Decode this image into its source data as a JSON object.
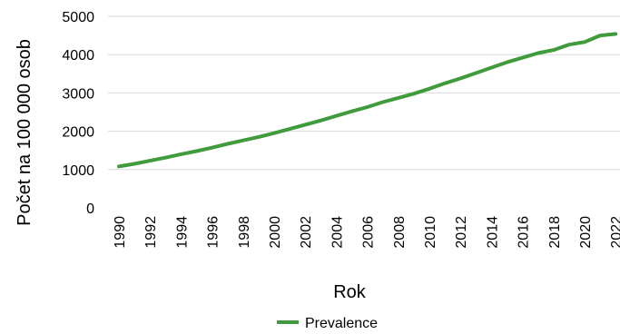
{
  "chart_data": {
    "type": "line",
    "xlabel": "Rok",
    "ylabel": "Počet na 100 000 osob",
    "ylim": [
      0,
      5000
    ],
    "yticks": [
      0,
      1000,
      2000,
      3000,
      4000,
      5000
    ],
    "xticks": [
      "1990",
      "1992",
      "1994",
      "1996",
      "1998",
      "2000",
      "2002",
      "2004",
      "2006",
      "2008",
      "2010",
      "2012",
      "2014",
      "2016",
      "2018",
      "2020",
      "2022"
    ],
    "grid": true,
    "legend_position": "bottom",
    "colors": {
      "prevalence": "#3f9b3c"
    },
    "series": [
      {
        "name": "Prevalence",
        "x": [
          1990,
          1991,
          1992,
          1993,
          1994,
          1995,
          1996,
          1997,
          1998,
          1999,
          2000,
          2001,
          2002,
          2003,
          2004,
          2005,
          2006,
          2007,
          2008,
          2009,
          2010,
          2011,
          2012,
          2013,
          2014,
          2015,
          2016,
          2017,
          2018,
          2019,
          2020,
          2021,
          2022
        ],
        "values": [
          1080,
          1150,
          1230,
          1310,
          1400,
          1480,
          1570,
          1670,
          1760,
          1850,
          1950,
          2060,
          2170,
          2280,
          2400,
          2520,
          2630,
          2760,
          2870,
          2980,
          3110,
          3250,
          3380,
          3520,
          3660,
          3800,
          3920,
          4040,
          4120,
          4260,
          4330,
          4500,
          4540
        ]
      }
    ]
  }
}
